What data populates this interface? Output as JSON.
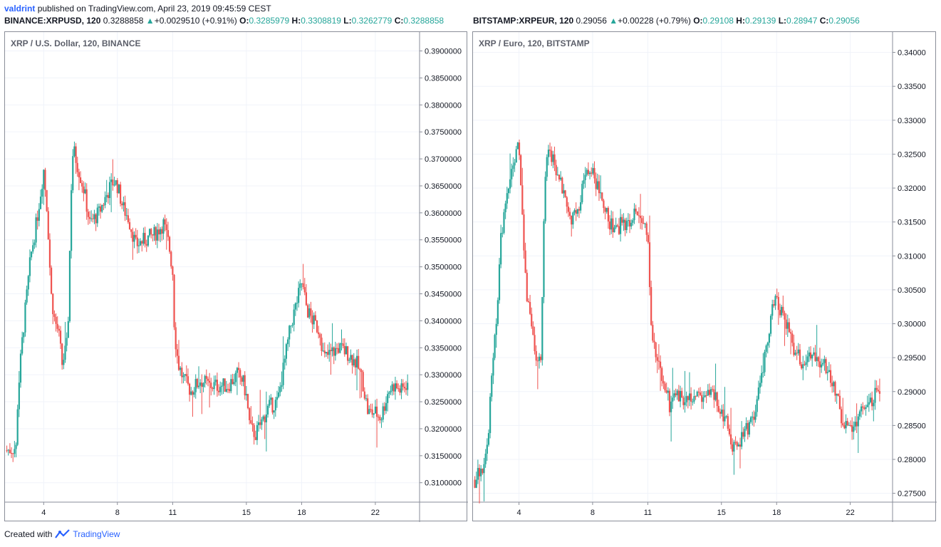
{
  "header": {
    "user": "valdrint",
    "published_text": "published on TradingView.com, April 23, 2019 09:45:59 CEST"
  },
  "quotes": [
    {
      "symbol": "BINANCE:XRPUSD, 120",
      "last": "0.3288858",
      "arrow": "▲",
      "change": "+0.0029510 (+0.91%)",
      "o_label": "O:",
      "o": "0.3285979",
      "h_label": "H:",
      "h": "0.3308819",
      "l_label": "L:",
      "l": "0.3262779",
      "c_label": "C:",
      "c": "0.3288858"
    },
    {
      "symbol": "BITSTAMP:XRPEUR, 120",
      "last": "0.29056",
      "arrow": "▲",
      "change": "+0.00228 (+0.79%)",
      "o_label": "O:",
      "o": "0.29108",
      "h_label": "H:",
      "h": "0.29139",
      "l_label": "L:",
      "l": "0.28947",
      "c_label": "C:",
      "c": "0.29056"
    }
  ],
  "footer": {
    "created_with": "Created with",
    "brand": "TradingView"
  },
  "colors": {
    "up": "#26a69a",
    "down": "#ef5350",
    "grid": "#f0f3fa",
    "axis": "#8a8e99",
    "brand": "#2962ff"
  },
  "chart_data": [
    {
      "type": "candlestick",
      "title": "XRP / U.S. Dollar, 120, BINANCE",
      "x_tick_labels": [
        "4",
        "8",
        "11",
        "15",
        "18",
        "22"
      ],
      "x_tick_days": [
        4,
        8,
        11,
        15,
        18,
        22
      ],
      "x_range_days": [
        1.9,
        24.4
      ],
      "y_tick_labels": [
        "0.3100000",
        "0.3150000",
        "0.3200000",
        "0.3250000",
        "0.3300000",
        "0.3350000",
        "0.3400000",
        "0.3450000",
        "0.3500000",
        "0.3550000",
        "0.3600000",
        "0.3650000",
        "0.3700000",
        "0.3750000",
        "0.3800000",
        "0.3850000",
        "0.3900000"
      ],
      "ylim": [
        0.3064,
        0.3935
      ],
      "grid": true,
      "close_path": [
        [
          2.0,
          0.316
        ],
        [
          2.5,
          0.3165
        ],
        [
          2.6,
          0.326
        ],
        [
          2.8,
          0.335
        ],
        [
          3.0,
          0.342
        ],
        [
          3.3,
          0.352
        ],
        [
          3.6,
          0.358
        ],
        [
          3.8,
          0.363
        ],
        [
          4.0,
          0.368
        ],
        [
          4.2,
          0.36
        ],
        [
          4.4,
          0.345
        ],
        [
          4.6,
          0.34
        ],
        [
          4.8,
          0.338
        ],
        [
          5.0,
          0.332
        ],
        [
          5.3,
          0.336
        ],
        [
          5.5,
          0.365
        ],
        [
          5.6,
          0.372
        ],
        [
          5.9,
          0.368
        ],
        [
          6.2,
          0.364
        ],
        [
          6.5,
          0.358
        ],
        [
          7.0,
          0.36
        ],
        [
          7.5,
          0.364
        ],
        [
          7.8,
          0.366
        ],
        [
          8.0,
          0.365
        ],
        [
          8.3,
          0.361
        ],
        [
          8.6,
          0.359
        ],
        [
          9.0,
          0.354
        ],
        [
          9.5,
          0.355
        ],
        [
          10.0,
          0.356
        ],
        [
          10.5,
          0.358
        ],
        [
          10.8,
          0.354
        ],
        [
          11.0,
          0.349
        ],
        [
          11.1,
          0.338
        ],
        [
          11.3,
          0.332
        ],
        [
          11.6,
          0.329
        ],
        [
          12.0,
          0.327
        ],
        [
          12.5,
          0.329
        ],
        [
          13.0,
          0.328
        ],
        [
          13.5,
          0.328
        ],
        [
          14.0,
          0.328
        ],
        [
          14.5,
          0.33
        ],
        [
          14.8,
          0.329
        ],
        [
          15.0,
          0.326
        ],
        [
          15.2,
          0.32
        ],
        [
          15.5,
          0.319
        ],
        [
          15.8,
          0.321
        ],
        [
          16.2,
          0.324
        ],
        [
          16.7,
          0.325
        ],
        [
          17.0,
          0.331
        ],
        [
          17.4,
          0.339
        ],
        [
          17.7,
          0.343
        ],
        [
          18.0,
          0.347
        ],
        [
          18.3,
          0.342
        ],
        [
          18.6,
          0.34
        ],
        [
          19.0,
          0.338
        ],
        [
          19.2,
          0.333
        ],
        [
          19.6,
          0.334
        ],
        [
          20.0,
          0.335
        ],
        [
          20.5,
          0.334
        ],
        [
          21.0,
          0.332
        ],
        [
          21.3,
          0.329
        ],
        [
          21.6,
          0.323
        ],
        [
          22.0,
          0.323
        ],
        [
          22.3,
          0.322
        ],
        [
          22.7,
          0.327
        ],
        [
          23.0,
          0.328
        ],
        [
          23.4,
          0.327
        ],
        [
          23.8,
          0.3289
        ]
      ]
    },
    {
      "type": "candlestick",
      "title": "XRP / Euro, 120, BITSTAMP",
      "x_tick_labels": [
        "4",
        "8",
        "11",
        "15",
        "18",
        "22"
      ],
      "x_tick_days": [
        4,
        8,
        11,
        15,
        18,
        22
      ],
      "x_range_days": [
        1.5,
        24.3
      ],
      "y_tick_labels": [
        "0.27500",
        "0.28000",
        "0.28500",
        "0.29000",
        "0.29500",
        "0.30000",
        "0.30500",
        "0.31000",
        "0.31500",
        "0.32000",
        "0.32500",
        "0.33000",
        "0.33500",
        "0.34000"
      ],
      "ylim": [
        0.2737,
        0.343
      ],
      "grid": true,
      "close_path": [
        [
          1.6,
          0.277
        ],
        [
          2.0,
          0.279
        ],
        [
          2.3,
          0.282
        ],
        [
          2.5,
          0.293
        ],
        [
          2.8,
          0.302
        ],
        [
          3.0,
          0.312
        ],
        [
          3.3,
          0.318
        ],
        [
          3.6,
          0.323
        ],
        [
          4.0,
          0.327
        ],
        [
          4.2,
          0.315
        ],
        [
          4.4,
          0.305
        ],
        [
          4.7,
          0.3
        ],
        [
          5.0,
          0.294
        ],
        [
          5.2,
          0.296
        ],
        [
          5.4,
          0.32
        ],
        [
          5.6,
          0.326
        ],
        [
          6.0,
          0.323
        ],
        [
          6.4,
          0.319
        ],
        [
          6.8,
          0.315
        ],
        [
          7.2,
          0.317
        ],
        [
          7.6,
          0.322
        ],
        [
          8.0,
          0.322
        ],
        [
          8.4,
          0.319
        ],
        [
          8.8,
          0.316
        ],
        [
          9.2,
          0.313
        ],
        [
          9.6,
          0.315
        ],
        [
          10.0,
          0.315
        ],
        [
          10.3,
          0.317
        ],
        [
          10.7,
          0.316
        ],
        [
          11.0,
          0.312
        ],
        [
          11.2,
          0.3
        ],
        [
          11.5,
          0.294
        ],
        [
          11.8,
          0.292
        ],
        [
          12.2,
          0.288
        ],
        [
          12.6,
          0.289
        ],
        [
          13.0,
          0.289
        ],
        [
          13.5,
          0.289
        ],
        [
          14.0,
          0.289
        ],
        [
          14.5,
          0.29
        ],
        [
          15.0,
          0.287
        ],
        [
          15.3,
          0.285
        ],
        [
          15.6,
          0.282
        ],
        [
          16.0,
          0.283
        ],
        [
          16.5,
          0.285
        ],
        [
          16.9,
          0.288
        ],
        [
          17.3,
          0.294
        ],
        [
          17.7,
          0.301
        ],
        [
          18.0,
          0.304
        ],
        [
          18.3,
          0.301
        ],
        [
          18.6,
          0.299
        ],
        [
          19.0,
          0.296
        ],
        [
          19.4,
          0.294
        ],
        [
          19.8,
          0.295
        ],
        [
          20.2,
          0.295
        ],
        [
          20.6,
          0.294
        ],
        [
          21.0,
          0.292
        ],
        [
          21.3,
          0.289
        ],
        [
          21.6,
          0.285
        ],
        [
          22.0,
          0.285
        ],
        [
          22.4,
          0.286
        ],
        [
          22.8,
          0.288
        ],
        [
          23.2,
          0.289
        ],
        [
          23.6,
          0.2906
        ]
      ]
    }
  ]
}
